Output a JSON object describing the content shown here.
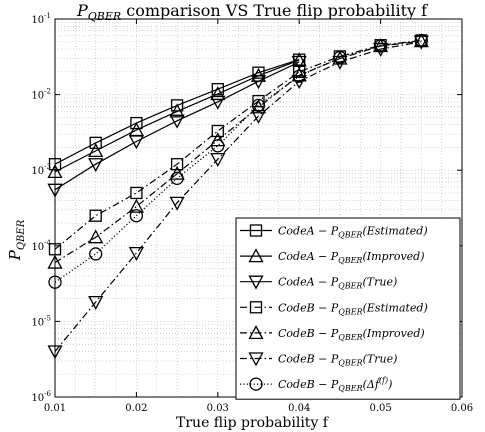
{
  "chart_data": {
    "type": "line",
    "title": {
      "main": "P",
      "sub": "QBER",
      "rest": " comparison VS True flip probability f"
    },
    "xlabel": "True flip probability f",
    "ylabel": {
      "main": "P",
      "sub": "QBER"
    },
    "xlim": [
      0.01,
      0.06
    ],
    "ylim": [
      1e-06,
      0.1
    ],
    "yscale": "log",
    "grid": true,
    "legend_position": "bottom-right",
    "x_ticks": [
      "0.01",
      "0.02",
      "0.03",
      "0.04",
      "0.05",
      "0.06"
    ],
    "x_tick_values": [
      0.01,
      0.02,
      0.03,
      0.04,
      0.05,
      0.06
    ],
    "y_ticks": [
      {
        "base": "10",
        "exp": "-6"
      },
      {
        "base": "10",
        "exp": "-5"
      },
      {
        "base": "10",
        "exp": "-4"
      },
      {
        "base": "10",
        "exp": "-3"
      },
      {
        "base": "10",
        "exp": "-2"
      },
      {
        "base": "10",
        "exp": "-1"
      }
    ],
    "y_tick_values": [
      1e-06,
      1e-05,
      0.0001,
      0.001,
      0.01,
      0.1
    ],
    "x": [
      0.01,
      0.015,
      0.02,
      0.025,
      0.03,
      0.035,
      0.04,
      0.045,
      0.05,
      0.055
    ],
    "series": [
      {
        "name": "CodeA − P_QBER(Estimated)",
        "legend": {
          "pre": "CodeA − P",
          "sub": "QBER",
          "post": "(Estimated)"
        },
        "marker": "square",
        "line": "solid",
        "x": [
          0.01,
          0.015,
          0.02,
          0.025,
          0.03,
          0.035,
          0.04
        ],
        "values": [
          0.0012,
          0.0023,
          0.0042,
          0.0072,
          0.0118,
          0.0195,
          0.029
        ]
      },
      {
        "name": "CodeA − P_QBER(Improved)",
        "legend": {
          "pre": "CodeA − P",
          "sub": "QBER",
          "post": "(Improved)"
        },
        "marker": "triangle-up",
        "line": "solid",
        "x": [
          0.01,
          0.015,
          0.02,
          0.025,
          0.03,
          0.035,
          0.04
        ],
        "values": [
          0.00095,
          0.0018,
          0.0034,
          0.006,
          0.0102,
          0.0178,
          0.0285
        ]
      },
      {
        "name": "CodeA − P_QBER(True)",
        "legend": {
          "pre": "CodeA − P",
          "sub": "QBER",
          "post": "(True)"
        },
        "marker": "triangle-down",
        "line": "solid",
        "x": [
          0.01,
          0.015,
          0.02,
          0.025,
          0.03,
          0.035,
          0.04
        ],
        "values": [
          0.00055,
          0.0012,
          0.0024,
          0.0045,
          0.008,
          0.015,
          0.027
        ]
      },
      {
        "name": "CodeB − P_QBER(Estimated)",
        "legend": {
          "pre": "CodeB − P",
          "sub": "QBER",
          "post": "(Estimated)"
        },
        "marker": "square",
        "line": "dashdot",
        "x": [
          0.01,
          0.015,
          0.02,
          0.025,
          0.03,
          0.035,
          0.04,
          0.045,
          0.05,
          0.055
        ],
        "values": [
          9e-05,
          0.00025,
          0.0005,
          0.0012,
          0.0033,
          0.0082,
          0.02,
          0.032,
          0.045,
          0.052
        ]
      },
      {
        "name": "CodeB − P_QBER(Improved)",
        "legend": {
          "pre": "CodeB − P",
          "sub": "QBER",
          "post": "(Improved)"
        },
        "marker": "triangle-up",
        "line": "dashdot",
        "x": [
          0.01,
          0.015,
          0.02,
          0.025,
          0.03,
          0.035,
          0.04,
          0.045,
          0.05,
          0.055
        ],
        "values": [
          6e-05,
          0.00013,
          0.00033,
          0.0009,
          0.0025,
          0.0068,
          0.018,
          0.03,
          0.044,
          0.051
        ]
      },
      {
        "name": "CodeB − P_QBER(True)",
        "legend": {
          "pre": "CodeB − P",
          "sub": "QBER",
          "post": "(True)"
        },
        "marker": "triangle-down",
        "line": "dashdot",
        "x": [
          0.01,
          0.015,
          0.02,
          0.025,
          0.03,
          0.035,
          0.04,
          0.045,
          0.05,
          0.055
        ],
        "values": [
          4e-06,
          1.8e-05,
          8e-05,
          0.00037,
          0.0014,
          0.0052,
          0.015,
          0.027,
          0.04,
          0.05
        ]
      },
      {
        "name": "CodeB − P_QBER(Δf̂(f))",
        "legend": {
          "pre": "CodeB − P",
          "sub": "QBER",
          "post": "(Δf̂",
          "sup": "(f)",
          "end": ")"
        },
        "marker": "circle",
        "line": "dotted",
        "x": [
          0.01,
          0.015,
          0.02,
          0.025,
          0.03,
          0.035,
          0.04,
          0.045,
          0.05,
          0.055
        ],
        "values": [
          3.3e-05,
          7.8e-05,
          0.00025,
          0.00078,
          0.0021,
          0.0072,
          0.0175,
          0.031,
          0.044,
          0.052
        ]
      }
    ]
  }
}
